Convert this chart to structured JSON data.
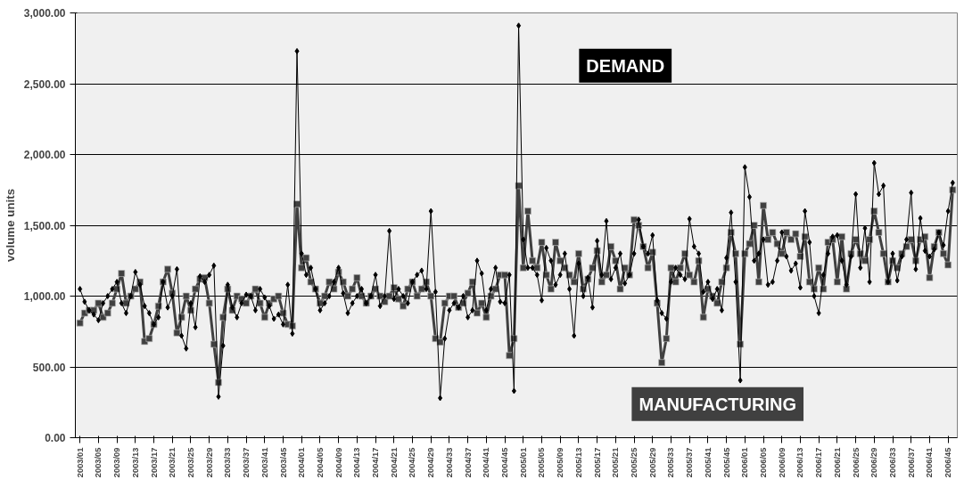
{
  "chart_data": {
    "type": "line",
    "ylabel": "volume units",
    "legend": false,
    "grid": "y",
    "ylim": [
      0,
      3000
    ],
    "yticks": [
      {
        "value": 0,
        "label": "0.00"
      },
      {
        "value": 500,
        "label": "500.00"
      },
      {
        "value": 1000,
        "label": "1,000.00"
      },
      {
        "value": 1500,
        "label": "1,500.00"
      },
      {
        "value": 2000,
        "label": "2,000.00"
      },
      {
        "value": 2500,
        "label": "2,500.00"
      },
      {
        "value": 3000,
        "label": "3,000.00"
      }
    ],
    "categories": [
      "2003/01",
      null,
      null,
      null,
      "2003/05",
      null,
      null,
      null,
      "2003/09",
      null,
      null,
      null,
      "2003/13",
      null,
      null,
      null,
      "2003/17",
      null,
      null,
      null,
      "2003/21",
      null,
      null,
      null,
      "2003/25",
      null,
      null,
      null,
      "2003/29",
      null,
      null,
      null,
      "2003/33",
      null,
      null,
      null,
      "2003/37",
      null,
      null,
      null,
      "2003/41",
      null,
      null,
      null,
      "2003/45",
      null,
      null,
      null,
      "2004/01",
      null,
      null,
      null,
      "2004/05",
      null,
      null,
      null,
      "2004/09",
      null,
      null,
      null,
      "2004/13",
      null,
      null,
      null,
      "2004/17",
      null,
      null,
      null,
      "2004/21",
      null,
      null,
      null,
      "2004/25",
      null,
      null,
      null,
      "2004/29",
      null,
      null,
      null,
      "2004/33",
      null,
      null,
      null,
      "2004/37",
      null,
      null,
      null,
      "2004/41",
      null,
      null,
      null,
      "2004/45",
      null,
      null,
      null,
      "2005/01",
      null,
      null,
      null,
      "2005/05",
      null,
      null,
      null,
      "2005/09",
      null,
      null,
      null,
      "2005/13",
      null,
      null,
      null,
      "2005/17",
      null,
      null,
      null,
      "2005/21",
      null,
      null,
      null,
      "2005/25",
      null,
      null,
      null,
      "2005/29",
      null,
      null,
      null,
      "2005/33",
      null,
      null,
      null,
      "2005/37",
      null,
      null,
      null,
      "2005/41",
      null,
      null,
      null,
      "2005/45",
      null,
      null,
      null,
      "2006/01",
      null,
      null,
      null,
      "2006/05",
      null,
      null,
      null,
      "2006/09",
      null,
      null,
      null,
      "2006/13",
      null,
      null,
      null,
      "2006/17",
      null,
      null,
      null,
      "2006/21",
      null,
      null,
      null,
      "2006/25",
      null,
      null,
      null,
      "2006/29",
      null,
      null,
      null,
      "2006/33",
      null,
      null,
      null,
      "2006/37",
      null,
      null,
      null,
      "2006/41",
      null,
      null,
      null,
      "2006/45",
      null
    ],
    "series": [
      {
        "name": "MANUFACTURING",
        "color": "#404040",
        "marker": "square",
        "values": [
          810,
          880,
          900,
          900,
          950,
          850,
          880,
          950,
          1050,
          1160,
          950,
          1000,
          1050,
          1100,
          680,
          700,
          800,
          930,
          1100,
          1190,
          1020,
          740,
          850,
          1000,
          900,
          1050,
          1120,
          1130,
          950,
          660,
          390,
          850,
          1050,
          900,
          1000,
          980,
          950,
          1000,
          1050,
          950,
          850,
          950,
          980,
          1000,
          880,
          800,
          790,
          1650,
          1200,
          1270,
          1100,
          1050,
          950,
          1000,
          1100,
          1050,
          1170,
          1100,
          1000,
          1050,
          1130,
          1000,
          950,
          1000,
          1050,
          1000,
          960,
          1000,
          1060,
          980,
          930,
          1050,
          1100,
          1000,
          1050,
          1100,
          1000,
          700,
          675,
          950,
          1000,
          1000,
          920,
          950,
          1020,
          1100,
          880,
          950,
          850,
          1000,
          1050,
          1150,
          1150,
          580,
          700,
          1780,
          1200,
          1600,
          1250,
          1200,
          1380,
          1150,
          1050,
          1380,
          1250,
          1200,
          1150,
          1100,
          1300,
          1050,
          1120,
          1200,
          1320,
          1100,
          1150,
          1350,
          1250,
          1050,
          1200,
          1150,
          1540,
          1500,
          1350,
          1200,
          1310,
          950,
          530,
          700,
          1200,
          1100,
          1200,
          1300,
          1150,
          1100,
          1250,
          850,
          1050,
          1000,
          950,
          1100,
          1200,
          1450,
          1300,
          660,
          1300,
          1370,
          1500,
          1100,
          1640,
          1400,
          1450,
          1370,
          1300,
          1450,
          1400,
          1440,
          1280,
          1420,
          1100,
          1050,
          1200,
          1050,
          1380,
          1400,
          1100,
          1420,
          1050,
          1300,
          1400,
          1300,
          1250,
          1400,
          1600,
          1450,
          1300,
          1100,
          1250,
          1200,
          1300,
          1350,
          1400,
          1250,
          1400,
          1420,
          1130,
          1350,
          1450,
          1300,
          1220,
          1750
        ]
      },
      {
        "name": "DEMAND",
        "color": "#000000",
        "marker": "diamond",
        "values": [
          1050,
          960,
          900,
          870,
          830,
          950,
          1000,
          1050,
          1100,
          950,
          880,
          1000,
          1170,
          1080,
          930,
          880,
          800,
          850,
          1100,
          920,
          1000,
          1190,
          720,
          630,
          950,
          780,
          1140,
          1100,
          1150,
          1215,
          290,
          650,
          1080,
          920,
          850,
          950,
          1010,
          1000,
          900,
          1050,
          990,
          930,
          840,
          870,
          800,
          1080,
          735,
          2730,
          1300,
          1150,
          1200,
          1050,
          900,
          950,
          1000,
          1100,
          1200,
          1020,
          880,
          950,
          1000,
          1050,
          950,
          1000,
          1150,
          930,
          1000,
          1460,
          980,
          1050,
          1000,
          950,
          1100,
          1150,
          1180,
          1050,
          1600,
          1030,
          280,
          700,
          900,
          950,
          920,
          1000,
          850,
          900,
          1250,
          1160,
          900,
          1050,
          1200,
          960,
          950,
          1150,
          330,
          2910,
          1400,
          1200,
          1200,
          1150,
          970,
          1340,
          1250,
          1080,
          1150,
          1300,
          1050,
          720,
          1230,
          1000,
          1130,
          920,
          1390,
          1150,
          1530,
          1120,
          1200,
          1300,
          1090,
          1150,
          1300,
          1540,
          1350,
          1300,
          1430,
          970,
          880,
          840,
          1100,
          1200,
          1150,
          1120,
          1545,
          1350,
          1300,
          1030,
          1100,
          980,
          1050,
          900,
          1270,
          1590,
          1100,
          405,
          1910,
          1700,
          1250,
          1300,
          1400,
          1080,
          1100,
          1250,
          1450,
          1280,
          1180,
          1230,
          1060,
          1600,
          1380,
          1000,
          880,
          1150,
          1300,
          1420,
          1430,
          1250,
          1080,
          1280,
          1720,
          1200,
          1480,
          1100,
          1940,
          1720,
          1780,
          1100,
          1300,
          1110,
          1280,
          1400,
          1730,
          1190,
          1550,
          1320,
          1280,
          1330,
          1450,
          1360,
          1600,
          1800
        ]
      }
    ]
  }
}
